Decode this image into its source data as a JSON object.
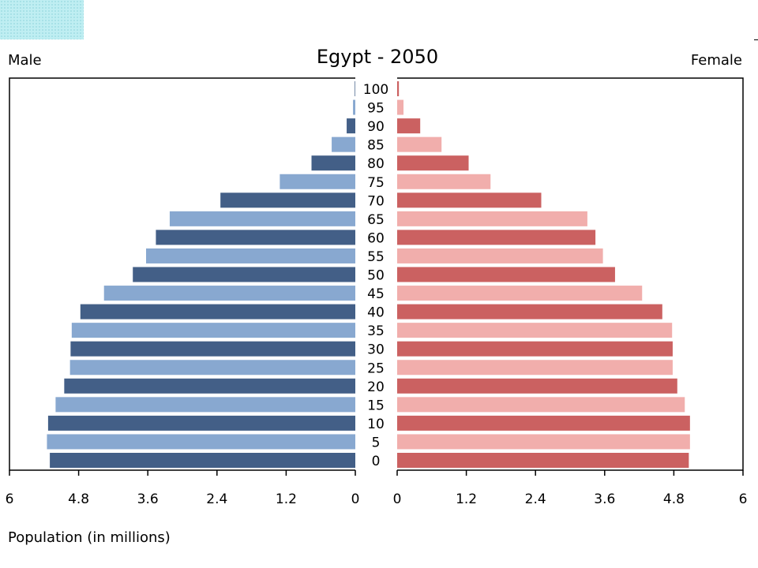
{
  "header": {
    "left_label": "Male",
    "right_label": "Female"
  },
  "chart_data": {
    "type": "bar",
    "orientation": "horizontal-population-pyramid",
    "title": "Egypt - 2050",
    "xlabel": "Population (in millions)",
    "xlim": [
      0,
      6
    ],
    "x_ticks": [
      "6",
      "4.8",
      "3.6",
      "2.4",
      "1.2",
      "0",
      "0",
      "1.2",
      "2.4",
      "3.6",
      "4.8",
      "6"
    ],
    "categories": [
      "0",
      "5",
      "10",
      "15",
      "20",
      "25",
      "30",
      "35",
      "40",
      "45",
      "50",
      "55",
      "60",
      "65",
      "70",
      "75",
      "80",
      "85",
      "90",
      "95",
      "100"
    ],
    "series": [
      {
        "name": "Male",
        "values": [
          5.3,
          5.35,
          5.33,
          5.2,
          5.05,
          4.95,
          4.94,
          4.92,
          4.77,
          4.36,
          3.86,
          3.63,
          3.46,
          3.22,
          2.34,
          1.31,
          0.76,
          0.41,
          0.15,
          0.04,
          0.01
        ],
        "colors": [
          "#435f87",
          "#88a8d0"
        ]
      },
      {
        "name": "Female",
        "values": [
          5.06,
          5.08,
          5.08,
          4.99,
          4.86,
          4.78,
          4.78,
          4.77,
          4.6,
          4.25,
          3.78,
          3.57,
          3.44,
          3.3,
          2.5,
          1.62,
          1.24,
          0.77,
          0.4,
          0.11,
          0.03
        ],
        "colors": [
          "#cb6161",
          "#f1aeac"
        ]
      }
    ],
    "grid": false
  }
}
